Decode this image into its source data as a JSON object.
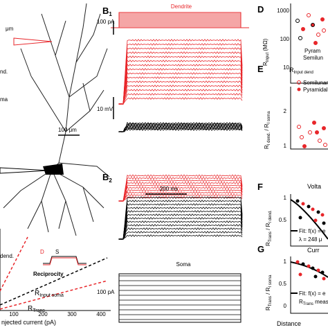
{
  "panel_a": {
    "scale_top": "μm",
    "scale_mid": "100 μm",
    "left_labels": [
      "nd.",
      "ma"
    ]
  },
  "panel_inset": {
    "dend": "dend.",
    "d": "D",
    "s": "S",
    "reciprocity": "Reciprocity",
    "r": "R",
    "input_sub": "Input soma",
    "trans_sub": "Trans",
    "xlabel": "njected current (pA)",
    "xticks": [
      "100",
      "200",
      "300",
      "400"
    ]
  },
  "panel_b1": {
    "label": "B",
    "sub": "1",
    "stim": "Dendrite",
    "pa": "100 pA",
    "mv": "10 mV"
  },
  "panel_b2": {
    "label": "B",
    "sub": "2",
    "ms": "200 ms",
    "stim": "Soma",
    "pa": "100 pA"
  },
  "panel_d": {
    "label": "D",
    "r": "R",
    "sub": "Input",
    "unit": " (MΩ)",
    "yticks": [
      "1000",
      "100",
      "10"
    ],
    "legend": [
      "Pyram",
      "Semilun"
    ]
  },
  "panel_e": {
    "label": "E",
    "title_r": "R",
    "title_sub": "Input dend",
    "r1": "R",
    "s1": "I dend.",
    "mid": " / R",
    "s2": "I soma",
    "yticks": [
      "2",
      "1"
    ],
    "legend": [
      "Semilunar",
      "Pyramidal"
    ]
  },
  "panel_f": {
    "label": "F",
    "title": "Volta",
    "r1": "R",
    "s1": "Trans",
    "mid": " / R",
    "s2": "I dend.",
    "fit": "Fit: f(x) = e",
    "lambda": "λ = 248 μ",
    "yticks": [
      "1",
      "0.5"
    ]
  },
  "panel_g": {
    "label": "G",
    "title": "Curr",
    "r1": "R",
    "s1": "Trans",
    "mid": " / R",
    "s2": "I soma",
    "fit": "Fit: f(x) = e",
    "meas_r": "R",
    "meas_sub": "Trans",
    "meas": " measur",
    "yticks": [
      "1",
      "0.5",
      "0"
    ],
    "xlabel": "Distance"
  }
}
